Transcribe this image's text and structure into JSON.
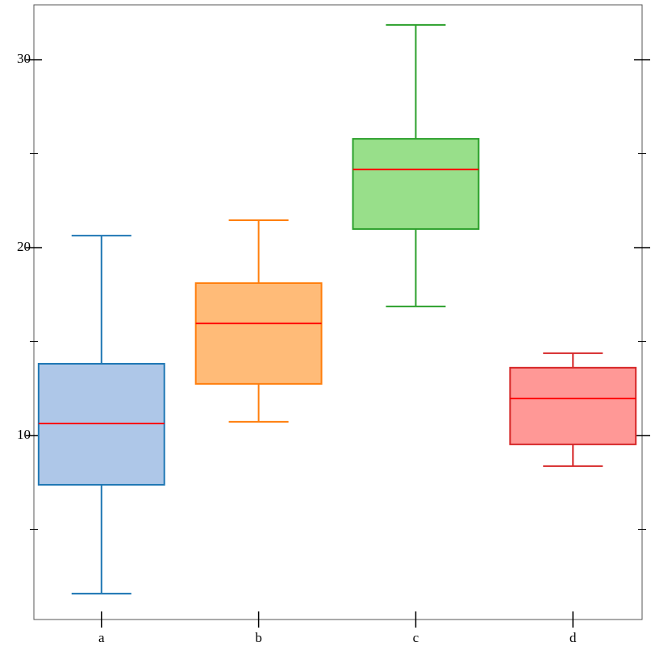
{
  "chart_data": {
    "type": "box",
    "categories": [
      "a",
      "b",
      "c",
      "d"
    ],
    "boxes": [
      {
        "whislo": 1.59,
        "q1": 7.38,
        "med": 10.64,
        "q3": 13.82,
        "whishi": 20.64,
        "color": "#aec7e8",
        "edge_color": "#1f77b4"
      },
      {
        "whislo": 10.73,
        "q1": 12.75,
        "med": 15.97,
        "q3": 18.11,
        "whishi": 21.46,
        "color": "#ffbb78",
        "edge_color": "#ff7f0e"
      },
      {
        "whislo": 16.87,
        "q1": 20.99,
        "med": 24.16,
        "q3": 25.79,
        "whishi": 31.85,
        "color": "#98df8a",
        "edge_color": "#2ca02c"
      },
      {
        "whislo": 8.37,
        "q1": 9.53,
        "med": 11.97,
        "q3": 13.61,
        "whishi": 14.38,
        "color": "#ff9896",
        "edge_color": "#d62728"
      }
    ],
    "median_color": "#ff0000",
    "xlim": [
      0.57,
      4.44
    ],
    "ylim": [
      0.21,
      32.92
    ],
    "yticks": [
      10,
      20,
      30
    ],
    "minor_yticks": [
      5,
      15,
      25
    ]
  }
}
